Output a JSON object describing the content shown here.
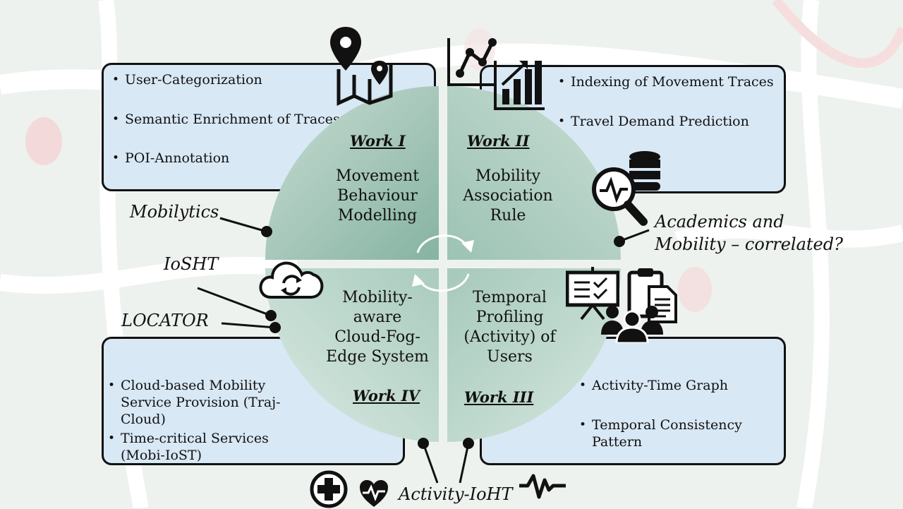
{
  "quadrants": {
    "q1": {
      "work": "Work I",
      "title_lines": [
        "Movement",
        "Behaviour",
        "Modelling"
      ]
    },
    "q2": {
      "work": "Work II",
      "title_lines": [
        "Mobility",
        "Association",
        "Rule"
      ]
    },
    "q3": {
      "work": "Work III",
      "title_lines": [
        "Temporal",
        "Profiling",
        "(Activity) of",
        "Users"
      ]
    },
    "q4": {
      "work": "Work IV",
      "title_lines": [
        "Mobility-",
        "aware",
        "Cloud-Fog-",
        "Edge System"
      ]
    }
  },
  "boxes": {
    "top_left": [
      "User-Categorization",
      "Semantic Enrichment of Traces",
      "POI-Annotation"
    ],
    "top_right": [
      "Indexing of Movement Traces",
      "Travel Demand Prediction"
    ],
    "bottom_left": [
      [
        "Cloud-based Mobility",
        "Service Provision (Traj-",
        "Cloud)"
      ],
      [
        "Time-critical Services",
        "(Mobi-IoST)"
      ]
    ],
    "bottom_right": [
      [
        "Activity-Time Graph"
      ],
      [
        "Temporal Consistency",
        "Pattern"
      ]
    ]
  },
  "labels": {
    "mobilytics": "Mobilytics",
    "academics_line1": "Academics and",
    "academics_line2": "Mobility – correlated?",
    "iosht": "IoSHT",
    "locator": "LOCATOR",
    "activity_ioht": "Activity-IoHT"
  },
  "colors": {
    "box_fill": "#d8e8f5",
    "quadrant_fill": "#a9cbbd",
    "border": "#111111"
  },
  "icons": [
    "map-pin-icon",
    "chart-icon",
    "database-search-icon",
    "cloud-sync-icon",
    "presentation-icon",
    "clipboard-icon",
    "users-icon",
    "medical-cross-icon",
    "heart-pulse-icon",
    "pulse-icon",
    "cycle-arrows-icon"
  ]
}
